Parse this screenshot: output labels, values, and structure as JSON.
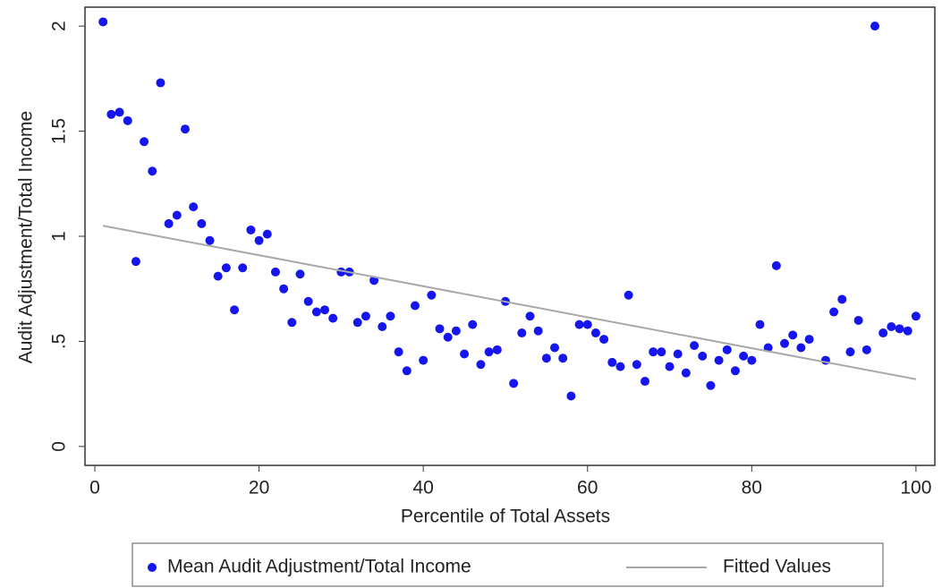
{
  "chart_data": {
    "type": "scatter",
    "x_label": "Percentile of Total Assets",
    "y_label": "Audit Adjustment/Total Income",
    "xlim": [
      -1.2,
      102.3
    ],
    "ylim": [
      -0.09,
      2.09
    ],
    "xticks": [
      0,
      20,
      40,
      60,
      80,
      100
    ],
    "yticks": [
      0,
      {
        "value": 0.5,
        "label": ".5"
      },
      1,
      1.5,
      2
    ],
    "series": [
      {
        "name": "Mean Audit Adjustment/Total Income",
        "color": "#1515ee",
        "type": "scatter",
        "x": [
          1,
          2,
          3,
          4,
          5,
          6,
          7,
          8,
          9,
          10,
          11,
          12,
          13,
          14,
          15,
          16,
          17,
          18,
          19,
          20,
          21,
          22,
          23,
          24,
          25,
          26,
          27,
          28,
          29,
          30,
          31,
          32,
          33,
          34,
          35,
          36,
          37,
          38,
          39,
          40,
          41,
          42,
          43,
          44,
          45,
          46,
          47,
          48,
          49,
          50,
          51,
          52,
          53,
          54,
          55,
          56,
          57,
          58,
          59,
          60,
          61,
          62,
          63,
          64,
          65,
          66,
          67,
          68,
          69,
          70,
          71,
          72,
          73,
          74,
          75,
          76,
          77,
          78,
          79,
          80,
          81,
          82,
          83,
          84,
          85,
          86,
          87,
          89,
          90,
          91,
          92,
          93,
          94,
          95,
          96,
          97,
          98,
          99,
          100
        ],
        "values": [
          2.02,
          1.58,
          1.59,
          1.55,
          0.88,
          1.45,
          1.31,
          1.73,
          1.06,
          1.1,
          1.51,
          1.14,
          1.06,
          0.98,
          0.81,
          0.85,
          0.65,
          0.85,
          1.03,
          0.98,
          1.01,
          0.83,
          0.75,
          0.59,
          0.82,
          0.69,
          0.64,
          0.65,
          0.61,
          0.83,
          0.83,
          0.59,
          0.62,
          0.79,
          0.57,
          0.62,
          0.45,
          0.36,
          0.67,
          0.41,
          0.72,
          0.56,
          0.52,
          0.55,
          0.44,
          0.58,
          0.39,
          0.45,
          0.46,
          0.69,
          0.3,
          0.54,
          0.62,
          0.55,
          0.42,
          0.47,
          0.42,
          0.24,
          0.58,
          0.58,
          0.54,
          0.51,
          0.4,
          0.38,
          0.72,
          0.39,
          0.31,
          0.45,
          0.45,
          0.38,
          0.44,
          0.35,
          0.48,
          0.43,
          0.29,
          0.41,
          0.46,
          0.36,
          0.43,
          0.41,
          0.58,
          0.47,
          0.86,
          0.49,
          0.53,
          0.47,
          0.51,
          0.41,
          0.64,
          0.7,
          0.45,
          0.6,
          0.46,
          2.0,
          0.54,
          0.57,
          0.56,
          0.55,
          0.62
        ]
      },
      {
        "name": "Fitted Values",
        "color": "#a8a8a8",
        "type": "line",
        "x": [
          1,
          100
        ],
        "values": [
          1.05,
          0.32
        ]
      }
    ]
  }
}
